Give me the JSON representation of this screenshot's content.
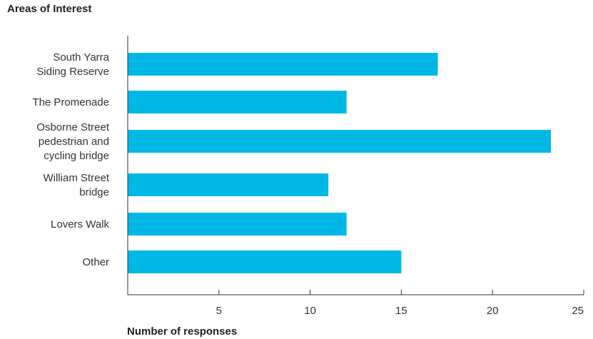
{
  "chart_data": {
    "type": "bar",
    "orientation": "horizontal",
    "title": "Areas of Interest",
    "xlabel": "Number of responses",
    "ylabel": "",
    "categories": [
      [
        "South Yarra",
        "Siding Reserve"
      ],
      [
        "The Promenade"
      ],
      [
        "Osborne Street",
        "pedestrian and",
        "cycling bridge"
      ],
      [
        "William Street",
        "bridge"
      ],
      [
        "Lovers Walk"
      ],
      [
        "Other"
      ]
    ],
    "values": [
      17,
      12,
      23.2,
      11,
      12,
      15
    ],
    "xlim": [
      0,
      25
    ],
    "xticks": [
      5,
      10,
      15,
      20,
      25
    ],
    "bar_color": "#00b8e6",
    "axis_color": "#333333",
    "grid": false,
    "legend": "none"
  }
}
